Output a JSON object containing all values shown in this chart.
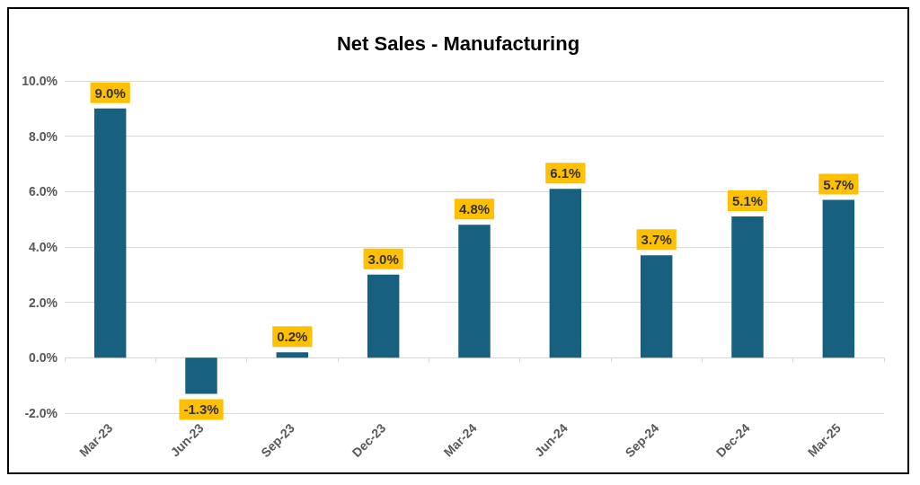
{
  "chart_data": {
    "type": "bar",
    "title": "Net Sales - Manufacturing",
    "categories": [
      "Mar-23",
      "Jun-23",
      "Sep-23",
      "Dec-23",
      "Mar-24",
      "Jun-24",
      "Sep-24",
      "Dec-24",
      "Mar-25"
    ],
    "values": [
      9.0,
      -1.3,
      0.2,
      3.0,
      4.8,
      6.1,
      3.7,
      5.1,
      5.7
    ],
    "value_labels": [
      "9.0%",
      "-1.3%",
      "0.2%",
      "3.0%",
      "4.8%",
      "6.1%",
      "3.7%",
      "5.1%",
      "5.7%"
    ],
    "color": "#17607f",
    "ylim": [
      -2,
      10
    ],
    "yticks": [
      {
        "value": -2,
        "label": "-2.0%"
      },
      {
        "value": 0,
        "label": "0.0%"
      },
      {
        "value": 2,
        "label": "2.0%"
      },
      {
        "value": 4,
        "label": "4.0%"
      },
      {
        "value": 6,
        "label": "6.0%"
      },
      {
        "value": 8,
        "label": "8.0%"
      },
      {
        "value": 10,
        "label": "10.0%"
      }
    ],
    "grid": "y"
  }
}
